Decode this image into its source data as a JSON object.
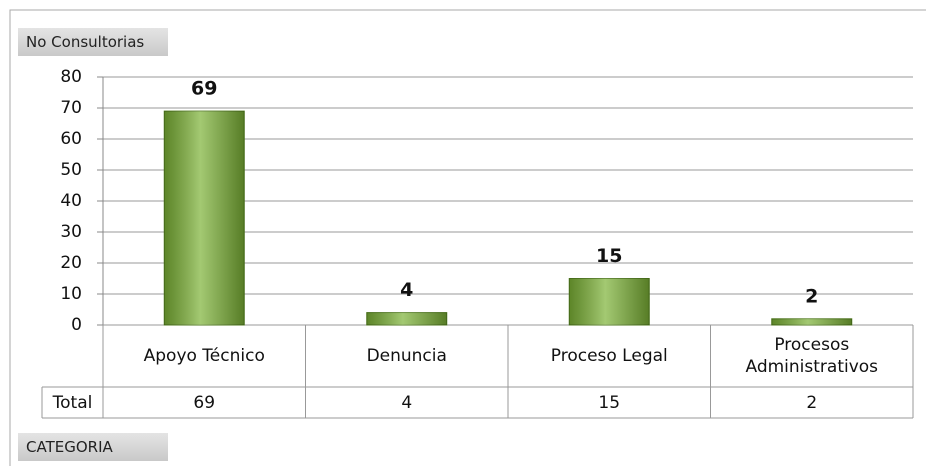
{
  "chart_data": {
    "type": "bar",
    "ylabel": "No Consultorias",
    "xlabel": "CATEGORIA",
    "categories": [
      "Apoyo Técnico",
      "Denuncia",
      "Proceso Legal",
      "Procesos Administrativos"
    ],
    "series": [
      {
        "name": "Total",
        "color": "#7cb236",
        "values": [
          69,
          4,
          15,
          2
        ]
      }
    ],
    "ylim": [
      0,
      80
    ],
    "yticks": [
      0,
      10,
      20,
      30,
      40,
      50,
      60,
      70,
      80
    ],
    "grid": true
  }
}
